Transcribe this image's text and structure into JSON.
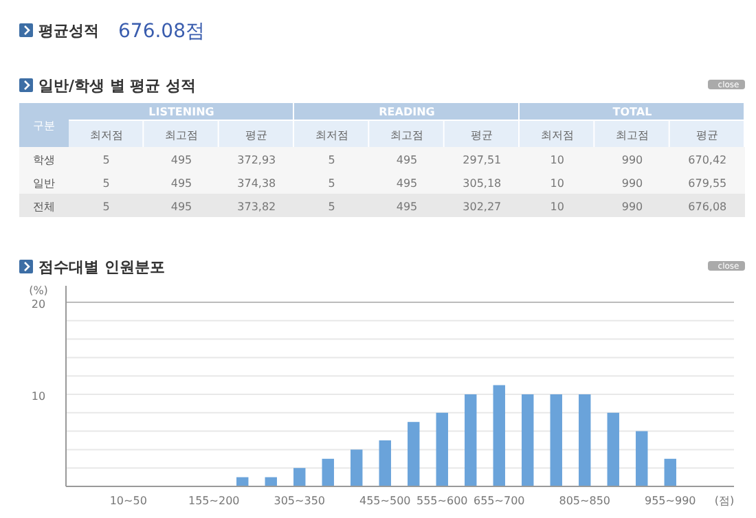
{
  "chart_data": [
    {
      "type": "other",
      "title": "평균성적",
      "subtitle": "676.08점"
    },
    {
      "type": "other",
      "title": "일반/학생 별 평균 성적",
      "annotations": [
        "구분",
        "LISTENING",
        "READING",
        "TOTAL",
        "close"
      ],
      "categories": [
        "최저점",
        "최고점",
        "평균",
        "최저점",
        "최고점",
        "평균",
        "최저점",
        "최고점",
        "평균"
      ],
      "y_categories": [
        "학생",
        "일반",
        "전체"
      ],
      "cell_labels": [
        [
          "5",
          "495",
          "372,93",
          "5",
          "495",
          "297,51",
          "10",
          "990",
          "670,42"
        ],
        [
          "5",
          "495",
          "374,38",
          "5",
          "495",
          "305,18",
          "10",
          "990",
          "679,55"
        ],
        [
          "5",
          "495",
          "373,82",
          "5",
          "495",
          "302,27",
          "10",
          "990",
          "676,08"
        ]
      ]
    },
    {
      "type": "bar",
      "title": "점수대별 인원분포",
      "ylabel": "(%)",
      "xlabel": "(점)",
      "annotations": [
        "close"
      ],
      "color": "#6aa3da",
      "categories": [
        "10~50",
        null,
        null,
        "155~200",
        null,
        null,
        "305~350",
        null,
        null,
        "455~500",
        null,
        "555~600",
        null,
        "655~700",
        null,
        null,
        "805~850",
        null,
        null,
        "955~990"
      ],
      "values": [
        0,
        0,
        0,
        0,
        1,
        1,
        2,
        3,
        4,
        5,
        7,
        8,
        10,
        11,
        10,
        10,
        10,
        8,
        6,
        3
      ],
      "ylim": [
        0,
        20
      ],
      "yticks": [
        {
          "value": 2,
          "label": null
        },
        {
          "value": 4,
          "label": null
        },
        {
          "value": 6,
          "label": null
        },
        {
          "value": 8,
          "label": null
        },
        10,
        {
          "value": 12,
          "label": null
        },
        {
          "value": 14,
          "label": null
        },
        {
          "value": 16,
          "label": null
        },
        {
          "value": 18,
          "label": null
        },
        20
      ],
      "grid": "y"
    }
  ]
}
